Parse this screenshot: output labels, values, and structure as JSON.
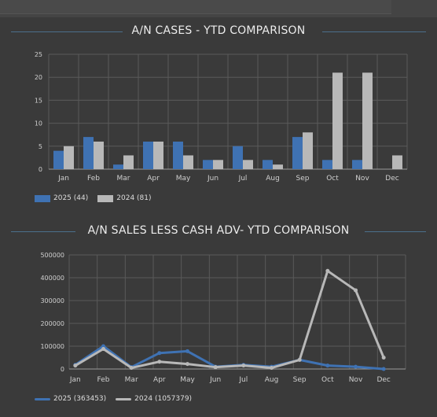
{
  "colors": {
    "series_2025": "#3f72b3",
    "series_2024": "#b8b8b8",
    "grid": "#5a5a5a",
    "axis": "#cfcfcf"
  },
  "section1": {
    "title": "A/N CASES - YTD COMPARISON",
    "legend": [
      {
        "label": "2025",
        "total": "(44)"
      },
      {
        "label": "2024",
        "total": "(81)"
      }
    ]
  },
  "section2": {
    "title": "A/N SALES LESS CASH ADV- YTD COMPARISON",
    "legend": [
      {
        "label": "2025",
        "total": "(363453)"
      },
      {
        "label": "2024",
        "total": "(1057379)"
      }
    ]
  },
  "chart_data": [
    {
      "type": "bar",
      "title": "A/N CASES - YTD COMPARISON",
      "categories": [
        "Jan",
        "Feb",
        "Mar",
        "Apr",
        "May",
        "Jun",
        "Jul",
        "Aug",
        "Sep",
        "Oct",
        "Nov",
        "Dec"
      ],
      "series": [
        {
          "name": "2025",
          "values": [
            4,
            7,
            1,
            6,
            6,
            2,
            5,
            2,
            7,
            2,
            2,
            0
          ]
        },
        {
          "name": "2024",
          "values": [
            5,
            6,
            3,
            6,
            3,
            2,
            2,
            1,
            8,
            21,
            21,
            3
          ]
        }
      ],
      "ylim": [
        0,
        25
      ],
      "yticks": [
        "0",
        "5",
        "10",
        "15",
        "20",
        "25"
      ],
      "grid": true,
      "legend": "bottom-left"
    },
    {
      "type": "line",
      "title": "A/N SALES LESS CASH ADV- YTD COMPARISON",
      "categories": [
        "Jan",
        "Feb",
        "Mar",
        "Apr",
        "May",
        "Jun",
        "Jul",
        "Aug",
        "Sep",
        "Oct",
        "Nov",
        "Dec"
      ],
      "series": [
        {
          "name": "2025",
          "values": [
            18000,
            100000,
            8000,
            70000,
            78000,
            10000,
            18000,
            10000,
            40000,
            15000,
            10000,
            0
          ]
        },
        {
          "name": "2024",
          "values": [
            15000,
            88000,
            5000,
            32000,
            22000,
            8000,
            15000,
            5000,
            40000,
            430000,
            345000,
            50000
          ]
        }
      ],
      "ylim": [
        0,
        500000
      ],
      "yticks": [
        "0",
        "100000",
        "200000",
        "300000",
        "400000",
        "500000"
      ],
      "grid": true,
      "legend": "bottom-left"
    }
  ]
}
